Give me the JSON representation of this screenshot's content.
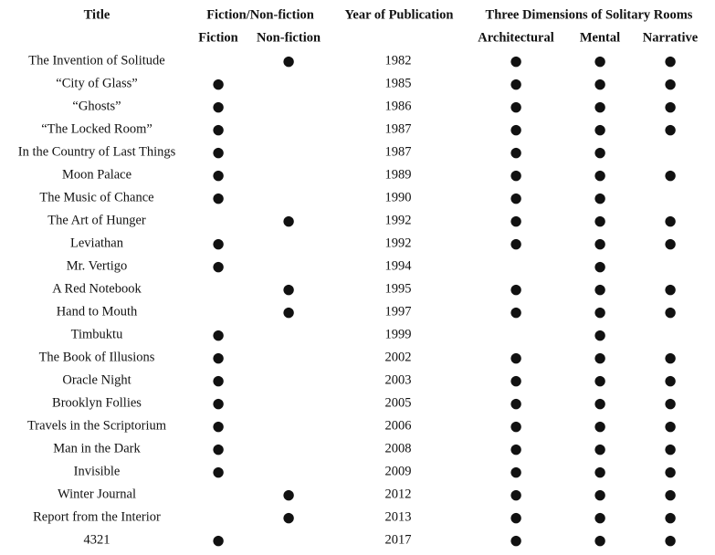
{
  "header": {
    "row1": [
      "Title",
      "Fiction/Non-fiction",
      "Year of Publication",
      "Three Dimensions of Solitary Rooms"
    ],
    "row2": [
      "Fiction",
      "Non-fiction",
      "Architectural",
      "Mental",
      "Narrative"
    ]
  },
  "table": {
    "rows": [
      [
        "The Invention of Solitude",
        null,
        "●",
        1982,
        "●",
        "●",
        "●"
      ],
      [
        "“City of Glass”",
        "●",
        null,
        1985,
        "●",
        "●",
        "●"
      ],
      [
        "“Ghosts”",
        "●",
        null,
        1986,
        "●",
        "●",
        "●"
      ],
      [
        "“The Locked Room”",
        "●",
        null,
        1987,
        "●",
        "●",
        "●"
      ],
      [
        "In the Country of Last Things",
        "●",
        null,
        1987,
        "●",
        "●",
        null
      ],
      [
        "Moon Palace",
        "●",
        null,
        1989,
        "●",
        "●",
        "●"
      ],
      [
        "The Music of Chance",
        "●",
        null,
        1990,
        "●",
        "●",
        null
      ],
      [
        "The Art of Hunger",
        null,
        "●",
        1992,
        "●",
        "●",
        "●"
      ],
      [
        "Leviathan",
        "●",
        null,
        1992,
        "●",
        "●",
        "●"
      ],
      [
        "Mr. Vertigo",
        "●",
        null,
        1994,
        null,
        "●",
        null
      ],
      [
        "A Red Notebook",
        null,
        "●",
        1995,
        "●",
        "●",
        "●"
      ],
      [
        "Hand to Mouth",
        null,
        "●",
        1997,
        "●",
        "●",
        "●"
      ],
      [
        "Timbuktu",
        "●",
        null,
        1999,
        null,
        "●",
        null
      ],
      [
        "The Book of Illusions",
        "●",
        null,
        2002,
        "●",
        "●",
        "●"
      ],
      [
        "Oracle Night",
        "●",
        null,
        2003,
        "●",
        "●",
        "●"
      ],
      [
        "Brooklyn Follies",
        "●",
        null,
        2005,
        "●",
        "●",
        "●"
      ],
      [
        "Travels in the Scriptorium",
        "●",
        null,
        2006,
        "●",
        "●",
        "●"
      ],
      [
        "Man in the Dark",
        "●",
        null,
        2008,
        "●",
        "●",
        "●"
      ],
      [
        "Invisible",
        "●",
        null,
        2009,
        "●",
        "●",
        "●"
      ],
      [
        "Winter Journal",
        null,
        "●",
        2012,
        "●",
        "●",
        "●"
      ],
      [
        "Report from the Interior",
        null,
        "●",
        2013,
        "●",
        "●",
        "●"
      ],
      [
        "4321",
        "●",
        null,
        2017,
        "●",
        "●",
        "●"
      ]
    ]
  }
}
